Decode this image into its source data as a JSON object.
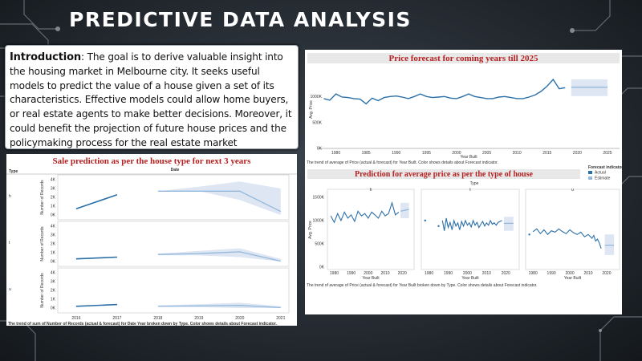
{
  "slide": {
    "title": "PREDICTIVE DATA ANALYSIS",
    "intro_label": "Introduction",
    "intro_text": ": The goal is to derive valuable insight into the housing market in Melbourne city. It seeks useful models to predict the value of a house given a set of its characteristics. Effective models could allow home buyers, or real estate agents to make better decisions. Moreover, it could benefit the projection of future house prices and the policymaking process for the real estate market"
  },
  "colors": {
    "actual": "#2a6fa8",
    "estimate": "#94b8dc",
    "band": "#dde6f2",
    "title_red": "#b51f1f"
  },
  "chart_data": [
    {
      "type": "line",
      "title": "Sale prediction as per the house type for next 3 years",
      "row_header": "Type",
      "col_header": "Date",
      "ylabel": "Number of Records",
      "x_ticks": [
        "2016",
        "2017",
        "2018",
        "2019",
        "2020",
        "2021"
      ],
      "y_ticks": [
        "0K",
        "1K",
        "2K",
        "3K",
        "4K"
      ],
      "ylim": [
        0,
        4000
      ],
      "footnote": "The trend of sum of Number of Records (actual & forecast) for Date Year broken down by Type. Color shows details about Forecast indicator.",
      "panels": [
        {
          "label": "h",
          "actual": {
            "x": [
              2016,
              2017
            ],
            "y": [
              700,
              2300
            ]
          },
          "estimate": {
            "x": [
              2018,
              2019,
              2020,
              2021
            ],
            "y": [
              2700,
              2700,
              2700,
              400
            ]
          },
          "band_low": [
            2700,
            2700,
            1700,
            0
          ],
          "band_high": [
            2700,
            3200,
            3800,
            3000
          ]
        },
        {
          "label": "t",
          "actual": {
            "x": [
              2016,
              2017
            ],
            "y": [
              300,
              500
            ]
          },
          "estimate": {
            "x": [
              2018,
              2019,
              2020,
              2021
            ],
            "y": [
              800,
              900,
              1100,
              50
            ]
          },
          "band_low": [
            700,
            700,
            500,
            0
          ],
          "band_high": [
            900,
            1200,
            1500,
            300
          ]
        },
        {
          "label": "u",
          "actual": {
            "x": [
              2016,
              2017
            ],
            "y": [
              200,
              400
            ]
          },
          "estimate": {
            "x": [
              2018,
              2019,
              2020,
              2021
            ],
            "y": [
              200,
              250,
              300,
              50
            ]
          },
          "band_low": [
            150,
            100,
            0,
            0
          ],
          "band_high": [
            300,
            450,
            600,
            200
          ]
        }
      ]
    },
    {
      "type": "line",
      "title": "Price forecast for coming years till 2025",
      "xlabel": "Year Built",
      "ylabel": "Avg. Price",
      "x_ticks": [
        "1980",
        "1985",
        "1990",
        "1995",
        "2000",
        "2005",
        "2010",
        "2015",
        "2020",
        "2025"
      ],
      "y_ticks": [
        "0K",
        "500K",
        "1000K"
      ],
      "ylim": [
        0,
        1500000
      ],
      "footnote": "The trend of average of Price (actual & forecast) for Year Built. Color shows details about Forecast indicator.",
      "actual": {
        "x": [
          1978,
          1979,
          1980,
          1981,
          1982,
          1983,
          1984,
          1985,
          1986,
          1987,
          1988,
          1989,
          1990,
          1991,
          1992,
          1993,
          1994,
          1995,
          1996,
          1997,
          1998,
          1999,
          2000,
          2001,
          2002,
          2003,
          2004,
          2005,
          2006,
          2007,
          2008,
          2009,
          2010,
          2011,
          2012,
          2013,
          2014,
          2015,
          2016,
          2017,
          2018
        ],
        "y": [
          960000,
          930000,
          1050000,
          990000,
          980000,
          960000,
          950000,
          860000,
          970000,
          920000,
          980000,
          1000000,
          1010000,
          990000,
          960000,
          1000000,
          1050000,
          1000000,
          980000,
          990000,
          1000000,
          970000,
          960000,
          1000000,
          1050000,
          1000000,
          980000,
          960000,
          960000,
          990000,
          1000000,
          980000,
          960000,
          960000,
          990000,
          1030000,
          1100000,
          1200000,
          1330000,
          1150000,
          1170000
        ]
      },
      "estimate": {
        "x": [
          2019,
          2025
        ],
        "y": [
          1180000,
          1180000
        ]
      },
      "band": {
        "x": [
          2019,
          2025
        ],
        "low": [
          1010000,
          1010000
        ],
        "high": [
          1330000,
          1330000
        ]
      }
    },
    {
      "type": "line",
      "title": "Prediction for average price as per the type of house",
      "col_header": "Type",
      "xlabel": "Year Built",
      "ylabel": "Avg. Price",
      "x_ticks": [
        "1980",
        "1990",
        "2000",
        "2010",
        "2020"
      ],
      "y_ticks": [
        "0K",
        "500K",
        "1000K",
        "1500K"
      ],
      "ylim": [
        0,
        1600000
      ],
      "legend": {
        "title": "Forecast indicator",
        "items": [
          "Actual",
          "Estimate"
        ],
        "position": "top-right"
      },
      "footnote": "The trend of average of Price (actual & forecast) for Year Built broken down by Type. Color shows details about Forecast indicator.",
      "panels": [
        {
          "label": "h",
          "actual": {
            "x": [
              1978,
              1980,
              1982,
              1984,
              1986,
              1988,
              1990,
              1992,
              1994,
              1996,
              1998,
              2000,
              2002,
              2004,
              2006,
              2008,
              2010,
              2012,
              2014,
              2016,
              2018
            ],
            "y": [
              1100000,
              960000,
              1150000,
              1000000,
              1180000,
              1050000,
              1120000,
              980000,
              1200000,
              1100000,
              1150000,
              1050000,
              1180000,
              1120000,
              1050000,
              1200000,
              1100000,
              1150000,
              1380000,
              1120000,
              1180000
            ]
          },
          "estimate": {
            "x": [
              2019,
              2024
            ],
            "y": [
              1200000,
              1240000
            ]
          },
          "band_low": [
            1050000,
            1050000
          ],
          "band_high": [
            1380000,
            1380000
          ]
        },
        {
          "label": "t",
          "dots": {
            "x": [
              1978,
              1985
            ],
            "y": [
              1000000,
              880000
            ]
          },
          "actual": {
            "x": [
              1987,
              1988,
              1989,
              1990,
              1991,
              1992,
              1993,
              1994,
              1995,
              1996,
              1997,
              1998,
              1999,
              2000,
              2001,
              2002,
              2003,
              2004,
              2005,
              2006,
              2007,
              2008,
              2009,
              2010,
              2011,
              2012,
              2013,
              2014,
              2015,
              2016,
              2017,
              2018
            ],
            "y": [
              1000000,
              780000,
              1050000,
              850000,
              960000,
              800000,
              1000000,
              880000,
              950000,
              800000,
              980000,
              880000,
              1000000,
              900000,
              950000,
              860000,
              1000000,
              900000,
              960000,
              850000,
              920000,
              980000,
              880000,
              950000,
              900000,
              1000000,
              920000,
              950000,
              900000,
              960000,
              980000,
              1000000
            ]
          },
          "estimate": {
            "x": [
              2019,
              2024
            ],
            "y": [
              940000,
              940000
            ]
          },
          "band_low": [
            780000,
            780000
          ],
          "band_high": [
            1080000,
            1080000
          ]
        },
        {
          "label": "u",
          "dots": {
            "x": [
              1978
            ],
            "y": [
              700000
            ]
          },
          "actual": {
            "x": [
              1980,
              1982,
              1984,
              1986,
              1988,
              1990,
              1992,
              1994,
              1996,
              1998,
              2000,
              2002,
              2004,
              2006,
              2008,
              2010,
              2012,
              2013,
              2014,
              2015,
              2016,
              2017
            ],
            "y": [
              760000,
              820000,
              720000,
              800000,
              700000,
              780000,
              750000,
              820000,
              760000,
              720000,
              800000,
              740000,
              700000,
              750000,
              650000,
              700000,
              620000,
              680000,
              560000,
              600000,
              520000,
              400000
            ]
          },
          "estimate": {
            "x": [
              2019,
              2024
            ],
            "y": [
              470000,
              470000
            ]
          },
          "band_low": [
            260000,
            260000
          ],
          "band_high": [
            700000,
            700000
          ]
        }
      ]
    }
  ]
}
